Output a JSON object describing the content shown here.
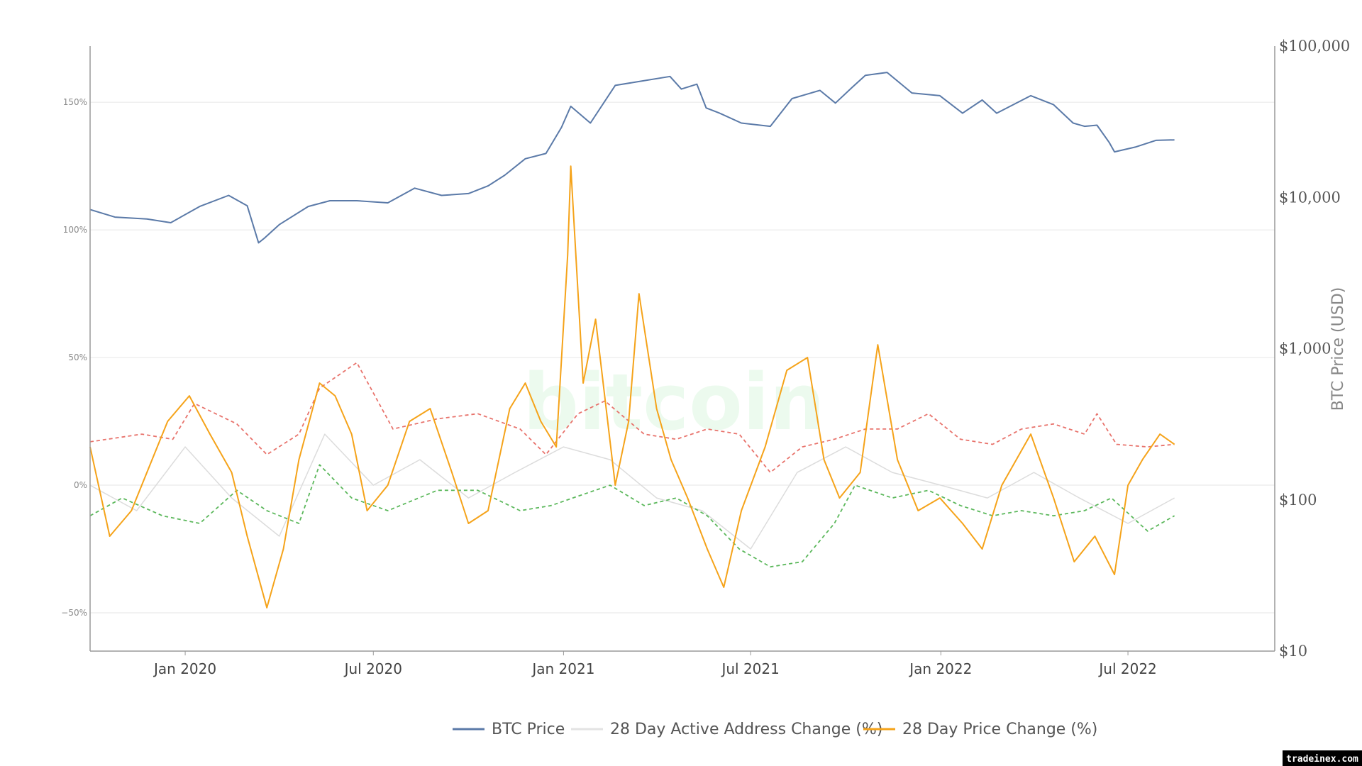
{
  "chart_data": {
    "type": "line",
    "watermark": "bitcoin",
    "credit": "tradeinex.com",
    "x_ticks": [
      "Jan 2020",
      "Jul 2020",
      "Jan 2021",
      "Jul 2021",
      "Jan 2022",
      "Jul 2022"
    ],
    "x_range": [
      "2019-10-01",
      "2022-11-20"
    ],
    "y_left": {
      "ticks": [
        "150%",
        "100%",
        "50%",
        "0%",
        "−50%"
      ],
      "tick_values": [
        150,
        100,
        50,
        0,
        -50
      ],
      "range": [
        -65,
        172
      ]
    },
    "y_right": {
      "label": "BTC Price (USD)",
      "scale": "log",
      "ticks": [
        "$100,000",
        "$10,000",
        "$1,000",
        "$100",
        "$10"
      ],
      "tick_values": [
        100000,
        10000,
        1000,
        100,
        10
      ],
      "range": [
        10,
        100000
      ]
    },
    "legend": [
      {
        "name": "BTC Price",
        "color": "#5b7aa8"
      },
      {
        "name": "28 Day Active Address Change (%)",
        "color": "#e3e3e3"
      },
      {
        "name": "28 Day Price Change (%)",
        "color": "#f5a31a"
      }
    ],
    "colors": {
      "price": "#5b7aa8",
      "active": "#dcdcdc",
      "change": "#f5a31a",
      "upper_band": "#e8736c",
      "lower_band": "#5cb85c",
      "grid": "#e6e6e6",
      "axis": "#999999"
    },
    "series": [
      {
        "name": "BTC Price",
        "axis": "right",
        "x": [
          "2019-10-01",
          "2019-10-25",
          "2019-11-25",
          "2019-12-18",
          "2020-01-15",
          "2020-02-12",
          "2020-03-01",
          "2020-03-12",
          "2020-03-18",
          "2020-04-01",
          "2020-04-29",
          "2020-05-20",
          "2020-06-15",
          "2020-07-15",
          "2020-08-10",
          "2020-09-05",
          "2020-10-01",
          "2020-10-20",
          "2020-11-05",
          "2020-11-25",
          "2020-12-15",
          "2020-12-30",
          "2021-01-08",
          "2021-01-27",
          "2021-02-20",
          "2021-03-13",
          "2021-04-14",
          "2021-04-25",
          "2021-05-10",
          "2021-05-19",
          "2021-06-01",
          "2021-06-22",
          "2021-07-20",
          "2021-08-10",
          "2021-09-06",
          "2021-09-21",
          "2021-10-08",
          "2021-10-20",
          "2021-11-10",
          "2021-12-04",
          "2021-12-31",
          "2022-01-22",
          "2022-02-10",
          "2022-02-24",
          "2022-03-29",
          "2022-04-20",
          "2022-05-09",
          "2022-05-20",
          "2022-06-01",
          "2022-06-13",
          "2022-06-18",
          "2022-07-08",
          "2022-07-28",
          "2022-08-15"
        ],
        "values": [
          8300,
          7400,
          7200,
          6800,
          8700,
          10300,
          8800,
          5000,
          5400,
          6600,
          8700,
          9500,
          9500,
          9200,
          11500,
          10300,
          10600,
          11900,
          14000,
          18000,
          19500,
          29000,
          40000,
          31000,
          55000,
          58000,
          63000,
          52000,
          56000,
          39000,
          36000,
          31000,
          29500,
          45000,
          51000,
          42000,
          54000,
          64000,
          67000,
          49000,
          47000,
          36000,
          44000,
          36000,
          47000,
          41000,
          31000,
          29500,
          30000,
          23000,
          20000,
          21500,
          23800,
          24000
        ]
      },
      {
        "name": "28 Day Price Change (%)",
        "axis": "left",
        "x": [
          "2019-10-01",
          "2019-10-20",
          "2019-11-10",
          "2019-11-25",
          "2019-12-15",
          "2020-01-05",
          "2020-01-25",
          "2020-02-15",
          "2020-03-01",
          "2020-03-20",
          "2020-04-05",
          "2020-04-20",
          "2020-05-10",
          "2020-05-25",
          "2020-06-10",
          "2020-06-25",
          "2020-07-15",
          "2020-08-05",
          "2020-08-25",
          "2020-09-15",
          "2020-10-01",
          "2020-10-20",
          "2020-11-10",
          "2020-11-25",
          "2020-12-10",
          "2020-12-25",
          "2021-01-05",
          "2021-01-08",
          "2021-01-20",
          "2021-02-01",
          "2021-02-20",
          "2021-03-05",
          "2021-03-15",
          "2021-04-01",
          "2021-04-15",
          "2021-05-01",
          "2021-05-20",
          "2021-06-05",
          "2021-06-22",
          "2021-07-15",
          "2021-08-05",
          "2021-08-25",
          "2021-09-10",
          "2021-09-25",
          "2021-10-15",
          "2021-11-01",
          "2021-11-20",
          "2021-12-10",
          "2021-12-31",
          "2022-01-22",
          "2022-02-10",
          "2022-03-01",
          "2022-03-29",
          "2022-04-20",
          "2022-05-10",
          "2022-05-30",
          "2022-06-18",
          "2022-07-01",
          "2022-07-15",
          "2022-08-01",
          "2022-08-15"
        ],
        "values": [
          15,
          -20,
          -10,
          5,
          25,
          35,
          20,
          5,
          -20,
          -48,
          -25,
          10,
          40,
          35,
          20,
          -10,
          0,
          25,
          30,
          5,
          -15,
          -10,
          30,
          40,
          25,
          15,
          90,
          125,
          40,
          65,
          0,
          25,
          75,
          30,
          10,
          -5,
          -25,
          -40,
          -10,
          15,
          45,
          50,
          10,
          -5,
          5,
          55,
          10,
          -10,
          -5,
          -15,
          -25,
          0,
          20,
          -5,
          -30,
          -20,
          -35,
          0,
          10,
          20,
          16
        ]
      },
      {
        "name": "28 Day Active Address Change (%)",
        "axis": "left",
        "x": [
          "2019-10-01",
          "2019-11-15",
          "2020-01-01",
          "2020-02-15",
          "2020-04-01",
          "2020-05-15",
          "2020-07-01",
          "2020-08-15",
          "2020-10-01",
          "2020-11-15",
          "2021-01-01",
          "2021-02-15",
          "2021-04-01",
          "2021-05-15",
          "2021-07-01",
          "2021-08-15",
          "2021-10-01",
          "2021-11-15",
          "2022-01-01",
          "2022-02-15",
          "2022-04-01",
          "2022-05-15",
          "2022-07-01",
          "2022-08-15"
        ],
        "values": [
          0,
          -10,
          15,
          -5,
          -20,
          20,
          0,
          10,
          -5,
          5,
          15,
          10,
          -5,
          -10,
          -25,
          5,
          15,
          5,
          0,
          -5,
          5,
          -5,
          -15,
          -5
        ]
      },
      {
        "name": "upper band",
        "axis": "left",
        "style": "dashed",
        "x": [
          "2019-10-01",
          "2019-11-20",
          "2019-12-20",
          "2020-01-10",
          "2020-02-20",
          "2020-03-20",
          "2020-04-20",
          "2020-05-10",
          "2020-06-15",
          "2020-07-20",
          "2020-09-01",
          "2020-10-10",
          "2020-11-20",
          "2020-12-15",
          "2021-01-15",
          "2021-02-10",
          "2021-03-20",
          "2021-04-20",
          "2021-05-20",
          "2021-06-20",
          "2021-07-20",
          "2021-08-20",
          "2021-09-20",
          "2021-10-20",
          "2021-11-20",
          "2021-12-20",
          "2022-01-20",
          "2022-02-20",
          "2022-03-20",
          "2022-04-20",
          "2022-05-20",
          "2022-06-01",
          "2022-06-20",
          "2022-07-20",
          "2022-08-15"
        ],
        "values": [
          17,
          20,
          18,
          32,
          24,
          12,
          20,
          38,
          48,
          22,
          26,
          28,
          22,
          12,
          28,
          33,
          20,
          18,
          22,
          20,
          5,
          15,
          18,
          22,
          22,
          28,
          18,
          16,
          22,
          24,
          20,
          28,
          16,
          15,
          16
        ]
      },
      {
        "name": "lower band",
        "axis": "left",
        "style": "dashed",
        "x": [
          "2019-10-01",
          "2019-11-01",
          "2019-12-10",
          "2020-01-15",
          "2020-02-20",
          "2020-03-20",
          "2020-04-20",
          "2020-05-10",
          "2020-06-10",
          "2020-07-15",
          "2020-09-01",
          "2020-10-10",
          "2020-11-20",
          "2020-12-20",
          "2021-01-10",
          "2021-02-15",
          "2021-03-20",
          "2021-04-20",
          "2021-05-20",
          "2021-06-20",
          "2021-07-20",
          "2021-08-20",
          "2021-09-20",
          "2021-10-10",
          "2021-11-15",
          "2021-12-20",
          "2022-01-20",
          "2022-02-20",
          "2022-03-20",
          "2022-04-20",
          "2022-05-20",
          "2022-06-15",
          "2022-07-20",
          "2022-08-15"
        ],
        "values": [
          -12,
          -5,
          -12,
          -15,
          -2,
          -10,
          -15,
          8,
          -5,
          -10,
          -2,
          -2,
          -10,
          -8,
          -5,
          0,
          -8,
          -5,
          -12,
          -25,
          -32,
          -30,
          -15,
          0,
          -5,
          -2,
          -8,
          -12,
          -10,
          -12,
          -10,
          -5,
          -18,
          -12
        ]
      }
    ]
  }
}
